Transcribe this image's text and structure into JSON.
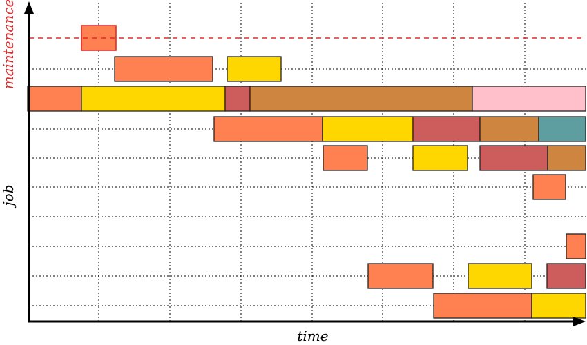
{
  "labels": {
    "maintenance": "maintenance",
    "job": "job",
    "time": "time"
  },
  "colors": {
    "axis": "#000000",
    "maintenance": "#e32b2b",
    "grid": "#000000",
    "bar_outline": "#222222",
    "palette": {
      "orange": "#ff8050",
      "yellow": "#ffd700",
      "red": "#cd5c5c",
      "brown": "#cd853f",
      "pink": "#ffc0cb",
      "teal": "#5f9ea0"
    }
  },
  "chart_data": {
    "type": "gantt",
    "rows": [
      {
        "name": "maintenance",
        "tasks": [
          {
            "start": 118,
            "end": 168,
            "color": "orange"
          }
        ]
      },
      {
        "name": "",
        "tasks": [
          {
            "start": 166,
            "end": 308,
            "color": "orange"
          },
          {
            "start": 329,
            "end": 407,
            "color": "yellow"
          }
        ]
      },
      {
        "name": "",
        "tasks": [
          {
            "start": 40,
            "end": 118,
            "color": "orange"
          },
          {
            "start": 118,
            "end": 326,
            "color": "yellow"
          },
          {
            "start": 326,
            "end": 362,
            "color": "red"
          },
          {
            "start": 362,
            "end": 684,
            "color": "brown"
          },
          {
            "start": 684,
            "end": 848,
            "color": "pink"
          }
        ]
      },
      {
        "name": "",
        "tasks": [
          {
            "start": 310,
            "end": 467,
            "color": "orange"
          },
          {
            "start": 467,
            "end": 598,
            "color": "yellow"
          },
          {
            "start": 598,
            "end": 695,
            "color": "red"
          },
          {
            "start": 695,
            "end": 780,
            "color": "brown"
          },
          {
            "start": 780,
            "end": 848,
            "color": "teal"
          }
        ]
      },
      {
        "name": "",
        "tasks": [
          {
            "start": 468,
            "end": 532,
            "color": "orange"
          },
          {
            "start": 598,
            "end": 677,
            "color": "yellow"
          },
          {
            "start": 695,
            "end": 793,
            "color": "red"
          },
          {
            "start": 793,
            "end": 848,
            "color": "brown"
          }
        ]
      },
      {
        "name": "",
        "tasks": [
          {
            "start": 772,
            "end": 819,
            "color": "orange"
          }
        ]
      },
      {
        "name": "",
        "tasks": []
      },
      {
        "name": "",
        "tasks": [
          {
            "start": 820,
            "end": 848,
            "color": "orange"
          }
        ]
      },
      {
        "name": "",
        "tasks": [
          {
            "start": 533,
            "end": 627,
            "color": "orange"
          },
          {
            "start": 678,
            "end": 770,
            "color": "yellow"
          },
          {
            "start": 792,
            "end": 848,
            "color": "red"
          }
        ]
      },
      {
        "name": "",
        "tasks": [
          {
            "start": 628,
            "end": 770,
            "color": "orange"
          },
          {
            "start": 770,
            "end": 848,
            "color": "yellow"
          }
        ]
      }
    ]
  }
}
